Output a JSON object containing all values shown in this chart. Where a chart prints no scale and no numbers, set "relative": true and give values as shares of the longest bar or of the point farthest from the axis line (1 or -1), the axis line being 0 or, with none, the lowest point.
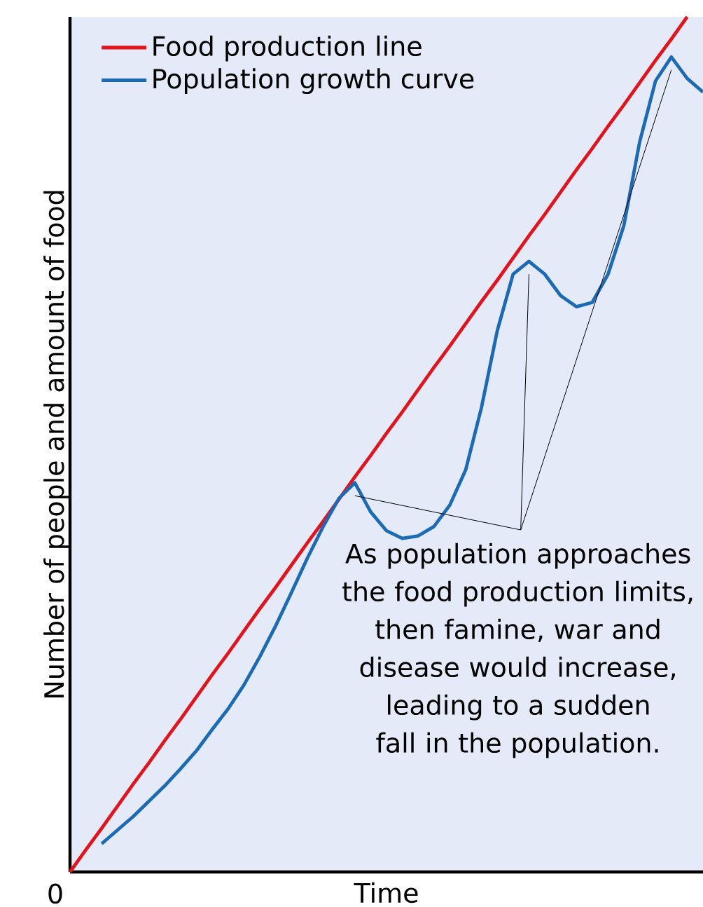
{
  "chart_data": {
    "type": "line",
    "relative": true,
    "xlabel": "Time",
    "ylabel": "Number of people and amount of food",
    "categories": [
      null,
      null,
      null,
      null,
      null,
      null,
      null,
      null,
      null,
      null,
      null,
      null,
      null,
      null,
      null,
      null,
      null,
      null,
      null,
      null,
      null,
      null,
      null,
      null,
      null,
      null,
      null,
      null,
      null,
      null,
      null,
      null,
      null,
      null,
      null,
      null,
      null,
      null,
      null,
      null,
      null
    ],
    "series": [
      {
        "name": "Food production line",
        "color": "#e3131b",
        "values": [
          0,
          0.026,
          0.051,
          0.077,
          0.103,
          0.128,
          0.154,
          0.179,
          0.205,
          0.231,
          0.256,
          0.282,
          0.308,
          0.333,
          0.359,
          0.385,
          0.41,
          0.436,
          0.462,
          0.487,
          0.513,
          0.538,
          0.564,
          0.59,
          0.615,
          0.641,
          0.667,
          0.692,
          0.718,
          0.744,
          0.769,
          0.795,
          0.821,
          0.846,
          0.872,
          0.897,
          0.923,
          0.949,
          0.974,
          1,
          null
        ]
      },
      {
        "name": "Population growth curve",
        "color": "#1b6ab5",
        "values": [
          null,
          null,
          0.033,
          0.049,
          0.065,
          0.083,
          0.101,
          0.121,
          0.142,
          0.167,
          0.191,
          0.219,
          0.252,
          0.288,
          0.327,
          0.367,
          0.404,
          0.437,
          0.455,
          0.421,
          0.399,
          0.39,
          0.393,
          0.404,
          0.429,
          0.47,
          0.543,
          0.633,
          0.699,
          0.714,
          0.699,
          0.674,
          0.661,
          0.666,
          0.699,
          0.756,
          0.854,
          0.925,
          0.953,
          0.928,
          0.912
        ]
      }
    ],
    "legend": "top left",
    "marker": "none",
    "line_style": "solid",
    "annotations": [
      "0",
      "As population approaches the food production limits, then famine, war and disease would increase, leading to a sudden fall in the population."
    ]
  }
}
